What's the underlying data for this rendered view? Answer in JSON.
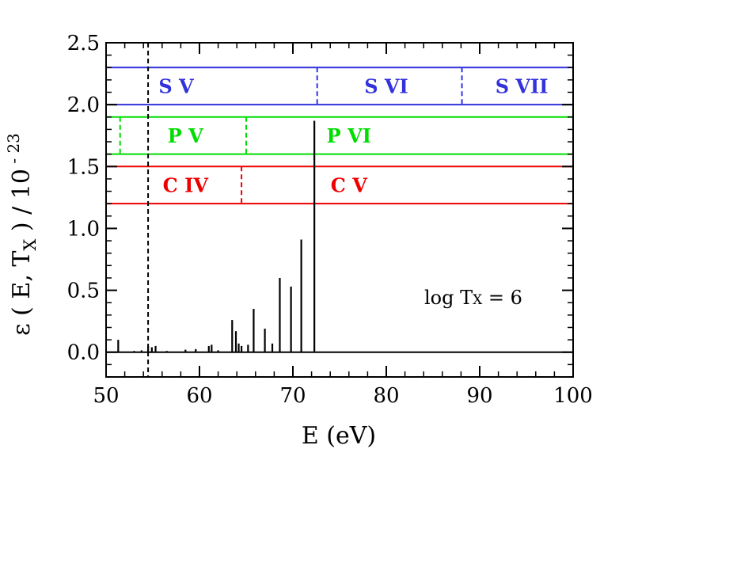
{
  "chart_data": {
    "type": "line",
    "xlabel": "E  (eV)",
    "ylabel_parts": {
      "main": "ε ( E, T",
      "sub": "X",
      "mid": " ) / 10",
      "sup": " - 23"
    },
    "xlim": [
      50,
      100
    ],
    "ylim": [
      -0.2,
      2.5
    ],
    "x_ticks": [
      50,
      60,
      70,
      80,
      90,
      100
    ],
    "y_ticks": [
      0.0,
      0.5,
      1.0,
      1.5,
      2.0,
      2.5
    ],
    "x_tick_labels": [
      "50",
      "60",
      "70",
      "80",
      "90",
      "100"
    ],
    "y_tick_labels": [
      "0.0",
      "0.5",
      "1.0",
      "1.5",
      "2.0",
      "2.5"
    ],
    "grid": false,
    "annotation": {
      "main": "log T",
      "sub": "X",
      "rest": " = 6"
    },
    "dashed_vline_x": 54.5,
    "spectrum_lines": [
      {
        "x": 51.3,
        "y": 0.1
      },
      {
        "x": 53.0,
        "y": 0.01
      },
      {
        "x": 53.8,
        "y": 0.015
      },
      {
        "x": 54.5,
        "y": 0.05
      },
      {
        "x": 54.9,
        "y": 0.04
      },
      {
        "x": 55.3,
        "y": 0.05
      },
      {
        "x": 56.5,
        "y": 0.01
      },
      {
        "x": 58.5,
        "y": 0.02
      },
      {
        "x": 59.6,
        "y": 0.025
      },
      {
        "x": 61.0,
        "y": 0.05
      },
      {
        "x": 61.3,
        "y": 0.06
      },
      {
        "x": 62.0,
        "y": 0.015
      },
      {
        "x": 63.5,
        "y": 0.26
      },
      {
        "x": 63.9,
        "y": 0.17
      },
      {
        "x": 64.2,
        "y": 0.07
      },
      {
        "x": 64.5,
        "y": 0.05
      },
      {
        "x": 65.2,
        "y": 0.06
      },
      {
        "x": 65.8,
        "y": 0.35
      },
      {
        "x": 67.0,
        "y": 0.19
      },
      {
        "x": 67.8,
        "y": 0.07
      },
      {
        "x": 68.6,
        "y": 0.6
      },
      {
        "x": 69.8,
        "y": 0.53
      },
      {
        "x": 70.9,
        "y": 0.91
      },
      {
        "x": 72.3,
        "y": 1.87
      }
    ],
    "ion_bands": [
      {
        "element": "S",
        "color": "#3333dd",
        "y_low": 2.0,
        "y_high": 2.3,
        "label_y": 2.15,
        "edges": [
          72.6,
          88.1
        ],
        "labels": [
          {
            "text": "S V",
            "x": 57.5
          },
          {
            "text": "S VI",
            "x": 80.0
          },
          {
            "text": "S VII",
            "x": 94.5
          }
        ]
      },
      {
        "element": "P",
        "color": "#00dd00",
        "y_low": 1.6,
        "y_high": 1.9,
        "label_y": 1.75,
        "edges": [
          51.5,
          65.0
        ],
        "labels": [
          {
            "text": "P V",
            "x": 58.5
          },
          {
            "text": "P VI",
            "x": 76.0
          }
        ]
      },
      {
        "element": "C",
        "color": "#ee0000",
        "y_low": 1.2,
        "y_high": 1.5,
        "label_y": 1.35,
        "edges": [
          64.5
        ],
        "labels": [
          {
            "text": "C IV",
            "x": 58.5
          },
          {
            "text": "C V",
            "x": 76.0
          }
        ]
      }
    ]
  }
}
